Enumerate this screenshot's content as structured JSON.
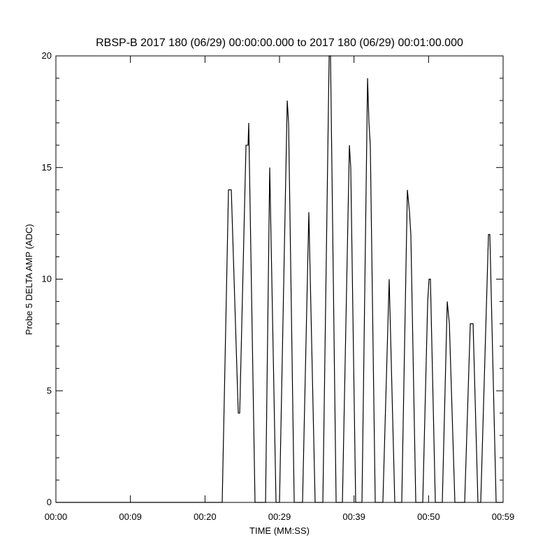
{
  "chart_data": {
    "type": "line",
    "title": "RBSP-B 2017 180 (06/29) 00:00:00.000 to 2017 180 (06/29) 00:01:00.000",
    "xlabel": "TIME (MM:SS)",
    "ylabel": "Probe 5 DELTA AMP (ADC)",
    "xlim": [
      0,
      59
    ],
    "ylim": [
      0,
      20
    ],
    "xticks": [
      {
        "value": 0,
        "label": "00:00"
      },
      {
        "value": 9.83,
        "label": "00:09"
      },
      {
        "value": 19.67,
        "label": "00:20"
      },
      {
        "value": 29.5,
        "label": "00:29"
      },
      {
        "value": 39.33,
        "label": "00:39"
      },
      {
        "value": 49.17,
        "label": "00:50"
      },
      {
        "value": 59,
        "label": "00:59"
      }
    ],
    "yticks": [
      0,
      5,
      10,
      15,
      20
    ],
    "yminorticks": [
      1,
      2,
      3,
      4,
      6,
      7,
      8,
      9,
      11,
      12,
      13,
      14,
      16,
      17,
      18,
      19
    ],
    "grid": false,
    "series": [
      {
        "name": "Probe 5",
        "color": "#000000",
        "x": [
          0,
          21.94,
          22.77,
          23.14,
          24.06,
          24.25,
          25.08,
          25.35,
          25.44,
          26.27,
          27.66,
          28.21,
          29.04,
          29.5,
          30.52,
          30.7,
          31.44,
          32.54,
          33.37,
          34.2,
          35.22,
          36.05,
          36.23,
          36.97,
          37.8,
          38.72,
          38.9,
          39.55,
          40.38,
          41.12,
          41.3,
          41.48,
          42.13,
          43.14,
          43.97,
          44.71,
          45.63,
          46.37,
          46.65,
          46.83,
          47.48,
          48.4,
          49.05,
          49.23,
          49.41,
          50.06,
          50.98,
          51.63,
          51.91,
          52.64,
          53.93,
          54.67,
          55.04,
          55.68,
          56.05,
          57.07,
          57.25,
          58.08,
          59
        ],
        "values": [
          0,
          0,
          14,
          14,
          4,
          4,
          16,
          16,
          17,
          0,
          0,
          15,
          0,
          0,
          18,
          17,
          0,
          0,
          13,
          0,
          0,
          20,
          20,
          0,
          0,
          16,
          15,
          0,
          0,
          19,
          17,
          16,
          0,
          0,
          10,
          0,
          0,
          14,
          13,
          12,
          0,
          0,
          9,
          10,
          10,
          0,
          0,
          9,
          8,
          0,
          0,
          8,
          8,
          0,
          0,
          12,
          12,
          0,
          0
        ]
      }
    ]
  }
}
